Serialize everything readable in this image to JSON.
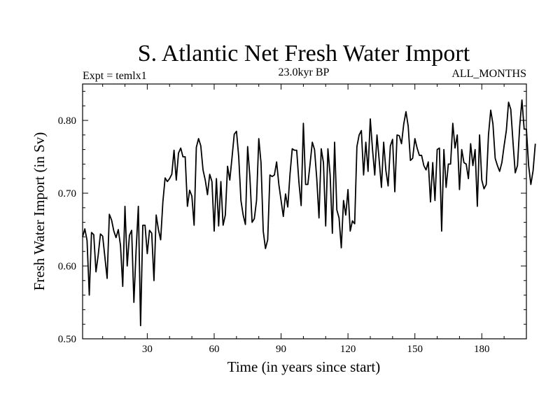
{
  "chart_data": {
    "type": "line",
    "title": "S. Atlantic Net Fresh Water Import",
    "subtitle_left": "Expt = temlx1",
    "subtitle_center": "23.0kyr BP",
    "subtitle_right": "ALL_MONTHS",
    "xlabel": "Time (in years since start)",
    "ylabel": "Fresh Water Import (in Sv)",
    "xlim": [
      1,
      200
    ],
    "ylim": [
      0.5,
      0.85
    ],
    "x_ticks": [
      30,
      60,
      90,
      120,
      150,
      180
    ],
    "x_tick_labels": [
      "30",
      "60",
      "90",
      "120",
      "150",
      "180"
    ],
    "y_ticks": [
      0.5,
      0.6,
      0.7,
      0.8
    ],
    "y_tick_labels": [
      "0.50",
      "0.60",
      "0.70",
      "0.80"
    ],
    "grid": false,
    "series": [
      {
        "name": "Fresh Water Import",
        "color": "#000000",
        "x_start": 1,
        "x_step": 1,
        "values": [
          0.64,
          0.651,
          0.635,
          0.56,
          0.646,
          0.643,
          0.592,
          0.615,
          0.644,
          0.641,
          0.612,
          0.583,
          0.671,
          0.663,
          0.648,
          0.639,
          0.65,
          0.628,
          0.572,
          0.682,
          0.6,
          0.642,
          0.649,
          0.55,
          0.622,
          0.682,
          0.518,
          0.656,
          0.656,
          0.617,
          0.649,
          0.645,
          0.58,
          0.67,
          0.65,
          0.636,
          0.688,
          0.721,
          0.716,
          0.72,
          0.726,
          0.759,
          0.718,
          0.755,
          0.762,
          0.75,
          0.75,
          0.682,
          0.704,
          0.696,
          0.656,
          0.763,
          0.775,
          0.765,
          0.732,
          0.718,
          0.698,
          0.726,
          0.716,
          0.648,
          0.72,
          0.655,
          0.716,
          0.656,
          0.67,
          0.737,
          0.718,
          0.749,
          0.781,
          0.785,
          0.75,
          0.69,
          0.67,
          0.657,
          0.764,
          0.723,
          0.66,
          0.665,
          0.69,
          0.775,
          0.742,
          0.648,
          0.624,
          0.636,
          0.725,
          0.723,
          0.725,
          0.743,
          0.712,
          0.69,
          0.668,
          0.699,
          0.681,
          0.726,
          0.761,
          0.759,
          0.759,
          0.715,
          0.683,
          0.796,
          0.712,
          0.712,
          0.74,
          0.77,
          0.76,
          0.72,
          0.666,
          0.761,
          0.742,
          0.655,
          0.761,
          0.725,
          0.645,
          0.77,
          0.677,
          0.666,
          0.625,
          0.69,
          0.67,
          0.705,
          0.648,
          0.662,
          0.658,
          0.764,
          0.78,
          0.786,
          0.725,
          0.77,
          0.73,
          0.802,
          0.76,
          0.725,
          0.78,
          0.745,
          0.708,
          0.77,
          0.731,
          0.71,
          0.765,
          0.774,
          0.702,
          0.78,
          0.779,
          0.768,
          0.795,
          0.812,
          0.792,
          0.745,
          0.748,
          0.775,
          0.762,
          0.752,
          0.752,
          0.738,
          0.732,
          0.743,
          0.688,
          0.742,
          0.69,
          0.76,
          0.762,
          0.648,
          0.76,
          0.708,
          0.74,
          0.74,
          0.796,
          0.762,
          0.78,
          0.705,
          0.76,
          0.742,
          0.74,
          0.72,
          0.768,
          0.738,
          0.76,
          0.682,
          0.78,
          0.718,
          0.706,
          0.712,
          0.78,
          0.814,
          0.795,
          0.748,
          0.738,
          0.73,
          0.742,
          0.765,
          0.786,
          0.825,
          0.815,
          0.77,
          0.728,
          0.738,
          0.792,
          0.828,
          0.788,
          0.788,
          0.738,
          0.712,
          0.731,
          0.768
        ]
      }
    ]
  }
}
